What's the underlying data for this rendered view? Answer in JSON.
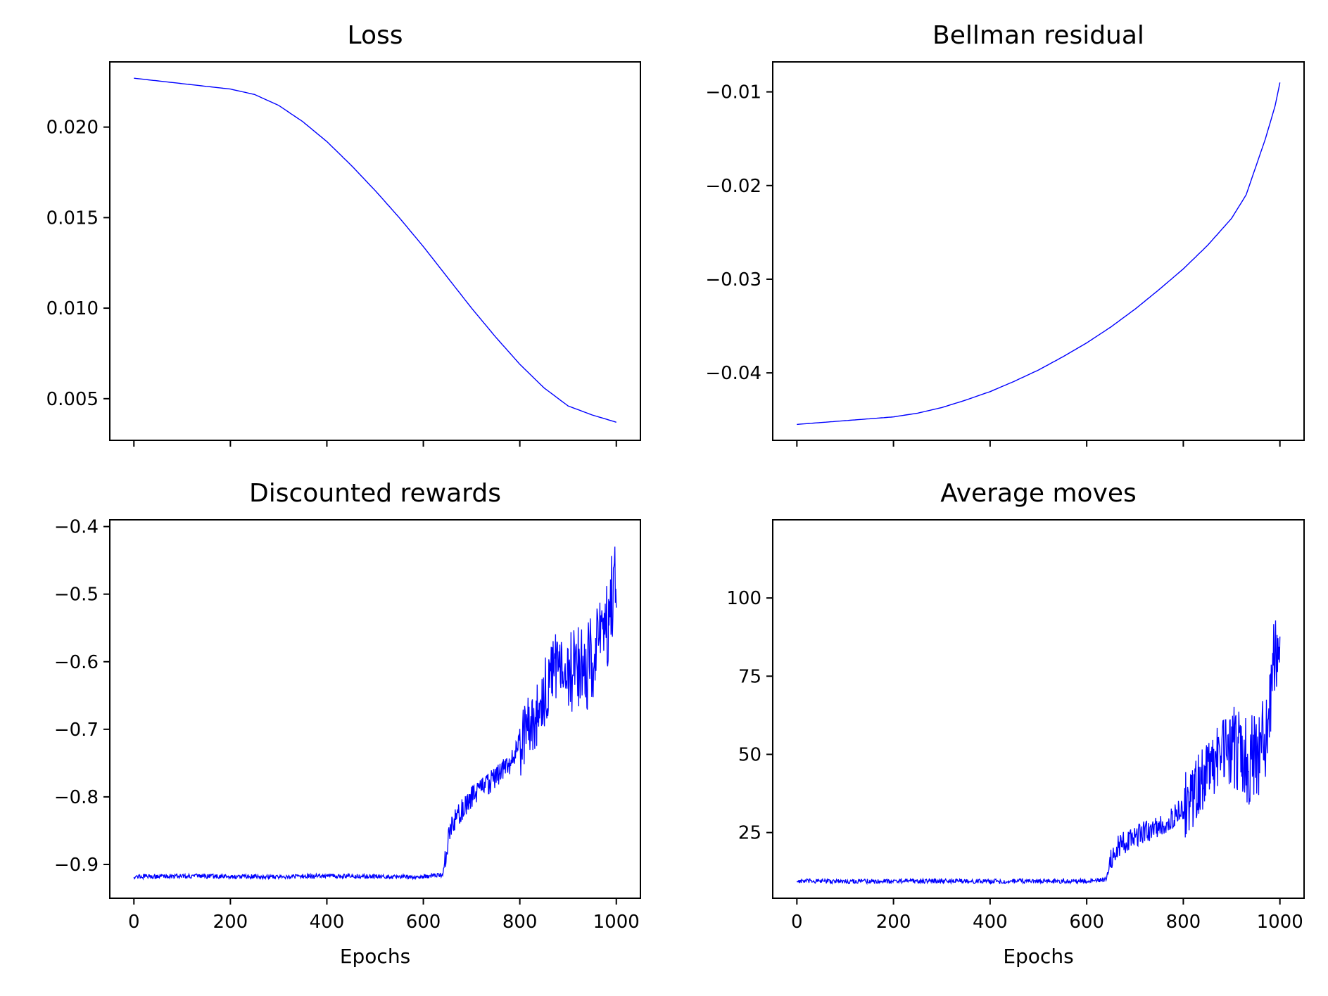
{
  "chart_data": [
    {
      "type": "line",
      "title": "Loss",
      "xlabel": "",
      "ylabel": "",
      "xlim": [
        -50,
        1050
      ],
      "ylim": [
        0.0027,
        0.0236
      ],
      "x_ticks": [
        0,
        200,
        400,
        600,
        800,
        1000
      ],
      "x_tick_labels": [
        "",
        "",
        "",
        "",
        "",
        ""
      ],
      "y_ticks": [
        0.005,
        0.01,
        0.015,
        0.02
      ],
      "y_tick_labels": [
        "0.005",
        "0.010",
        "0.015",
        "0.020"
      ],
      "grid": false,
      "color": "#0000ff",
      "series": [
        {
          "x": [
            0,
            100,
            200,
            250,
            300,
            350,
            400,
            450,
            500,
            550,
            600,
            650,
            700,
            750,
            800,
            850,
            900,
            950,
            1000
          ],
          "y": [
            0.0227,
            0.0224,
            0.0221,
            0.0218,
            0.0212,
            0.0203,
            0.0192,
            0.0179,
            0.0165,
            0.015,
            0.0134,
            0.0117,
            0.01,
            0.0084,
            0.0069,
            0.0056,
            0.0046,
            0.0041,
            0.0037
          ]
        }
      ]
    },
    {
      "type": "line",
      "title": "Bellman residual",
      "xlabel": "",
      "ylabel": "",
      "xlim": [
        -50,
        1050
      ],
      "ylim": [
        -0.0472,
        -0.0068
      ],
      "x_ticks": [
        0,
        200,
        400,
        600,
        800,
        1000
      ],
      "x_tick_labels": [
        "",
        "",
        "",
        "",
        "",
        ""
      ],
      "y_ticks": [
        -0.04,
        -0.03,
        -0.02,
        -0.01
      ],
      "y_tick_labels": [
        "−0.04",
        "−0.03",
        "−0.02",
        "−0.01"
      ],
      "grid": false,
      "color": "#0000ff",
      "series": [
        {
          "x": [
            0,
            100,
            200,
            250,
            300,
            350,
            400,
            450,
            500,
            550,
            600,
            650,
            700,
            750,
            800,
            850,
            900,
            930,
            950,
            970,
            990,
            1000
          ],
          "y": [
            -0.0455,
            -0.0451,
            -0.0447,
            -0.0443,
            -0.0437,
            -0.0429,
            -0.042,
            -0.0409,
            -0.0397,
            -0.0383,
            -0.0368,
            -0.0351,
            -0.0332,
            -0.0311,
            -0.0289,
            -0.0264,
            -0.0235,
            -0.021,
            -0.018,
            -0.015,
            -0.0115,
            -0.009
          ]
        }
      ]
    },
    {
      "type": "line",
      "title": "Discounted rewards",
      "xlabel": "Epochs",
      "ylabel": "",
      "xlim": [
        -50,
        1050
      ],
      "ylim": [
        -0.95,
        -0.39
      ],
      "x_ticks": [
        0,
        200,
        400,
        600,
        800,
        1000
      ],
      "x_tick_labels": [
        "0",
        "200",
        "400",
        "600",
        "800",
        "1000"
      ],
      "y_ticks": [
        -0.9,
        -0.8,
        -0.7,
        -0.6,
        -0.5,
        -0.4
      ],
      "y_tick_labels": [
        "−0.9",
        "−0.8",
        "−0.7",
        "−0.6",
        "−0.5",
        "−0.4"
      ],
      "grid": false,
      "color": "#0000ff",
      "series": [
        {
          "x": [
            0,
            100,
            200,
            300,
            400,
            500,
            600,
            640,
            650,
            660,
            680,
            700,
            720,
            750,
            780,
            800,
            820,
            840,
            860,
            880,
            900,
            920,
            940,
            960,
            980,
            990,
            1000
          ],
          "y": [
            -0.918,
            -0.917,
            -0.918,
            -0.918,
            -0.917,
            -0.918,
            -0.918,
            -0.915,
            -0.87,
            -0.84,
            -0.82,
            -0.8,
            -0.79,
            -0.77,
            -0.75,
            -0.72,
            -0.7,
            -0.67,
            -0.63,
            -0.6,
            -0.62,
            -0.6,
            -0.61,
            -0.58,
            -0.55,
            -0.5,
            -0.48
          ]
        }
      ]
    },
    {
      "type": "line",
      "title": "Average moves",
      "xlabel": "Epochs",
      "ylabel": "",
      "xlim": [
        -50,
        1050
      ],
      "ylim": [
        4,
        125
      ],
      "x_ticks": [
        0,
        200,
        400,
        600,
        800,
        1000
      ],
      "x_tick_labels": [
        "0",
        "200",
        "400",
        "600",
        "800",
        "1000"
      ],
      "y_ticks": [
        25,
        50,
        75,
        100
      ],
      "y_tick_labels": [
        "25",
        "50",
        "75",
        "100"
      ],
      "grid": false,
      "color": "#0000ff",
      "series": [
        {
          "x": [
            0,
            100,
            200,
            300,
            400,
            500,
            600,
            640,
            650,
            660,
            680,
            700,
            720,
            750,
            780,
            800,
            820,
            840,
            860,
            880,
            900,
            920,
            940,
            960,
            975,
            985,
            995,
            1000
          ],
          "y": [
            9.5,
            9.4,
            9.5,
            9.5,
            9.4,
            9.5,
            9.5,
            10,
            16,
            20,
            22,
            24,
            25,
            27,
            30,
            33,
            37,
            41,
            46,
            50,
            51,
            50,
            48,
            52,
            58,
            75,
            88,
            90
          ]
        }
      ]
    }
  ]
}
